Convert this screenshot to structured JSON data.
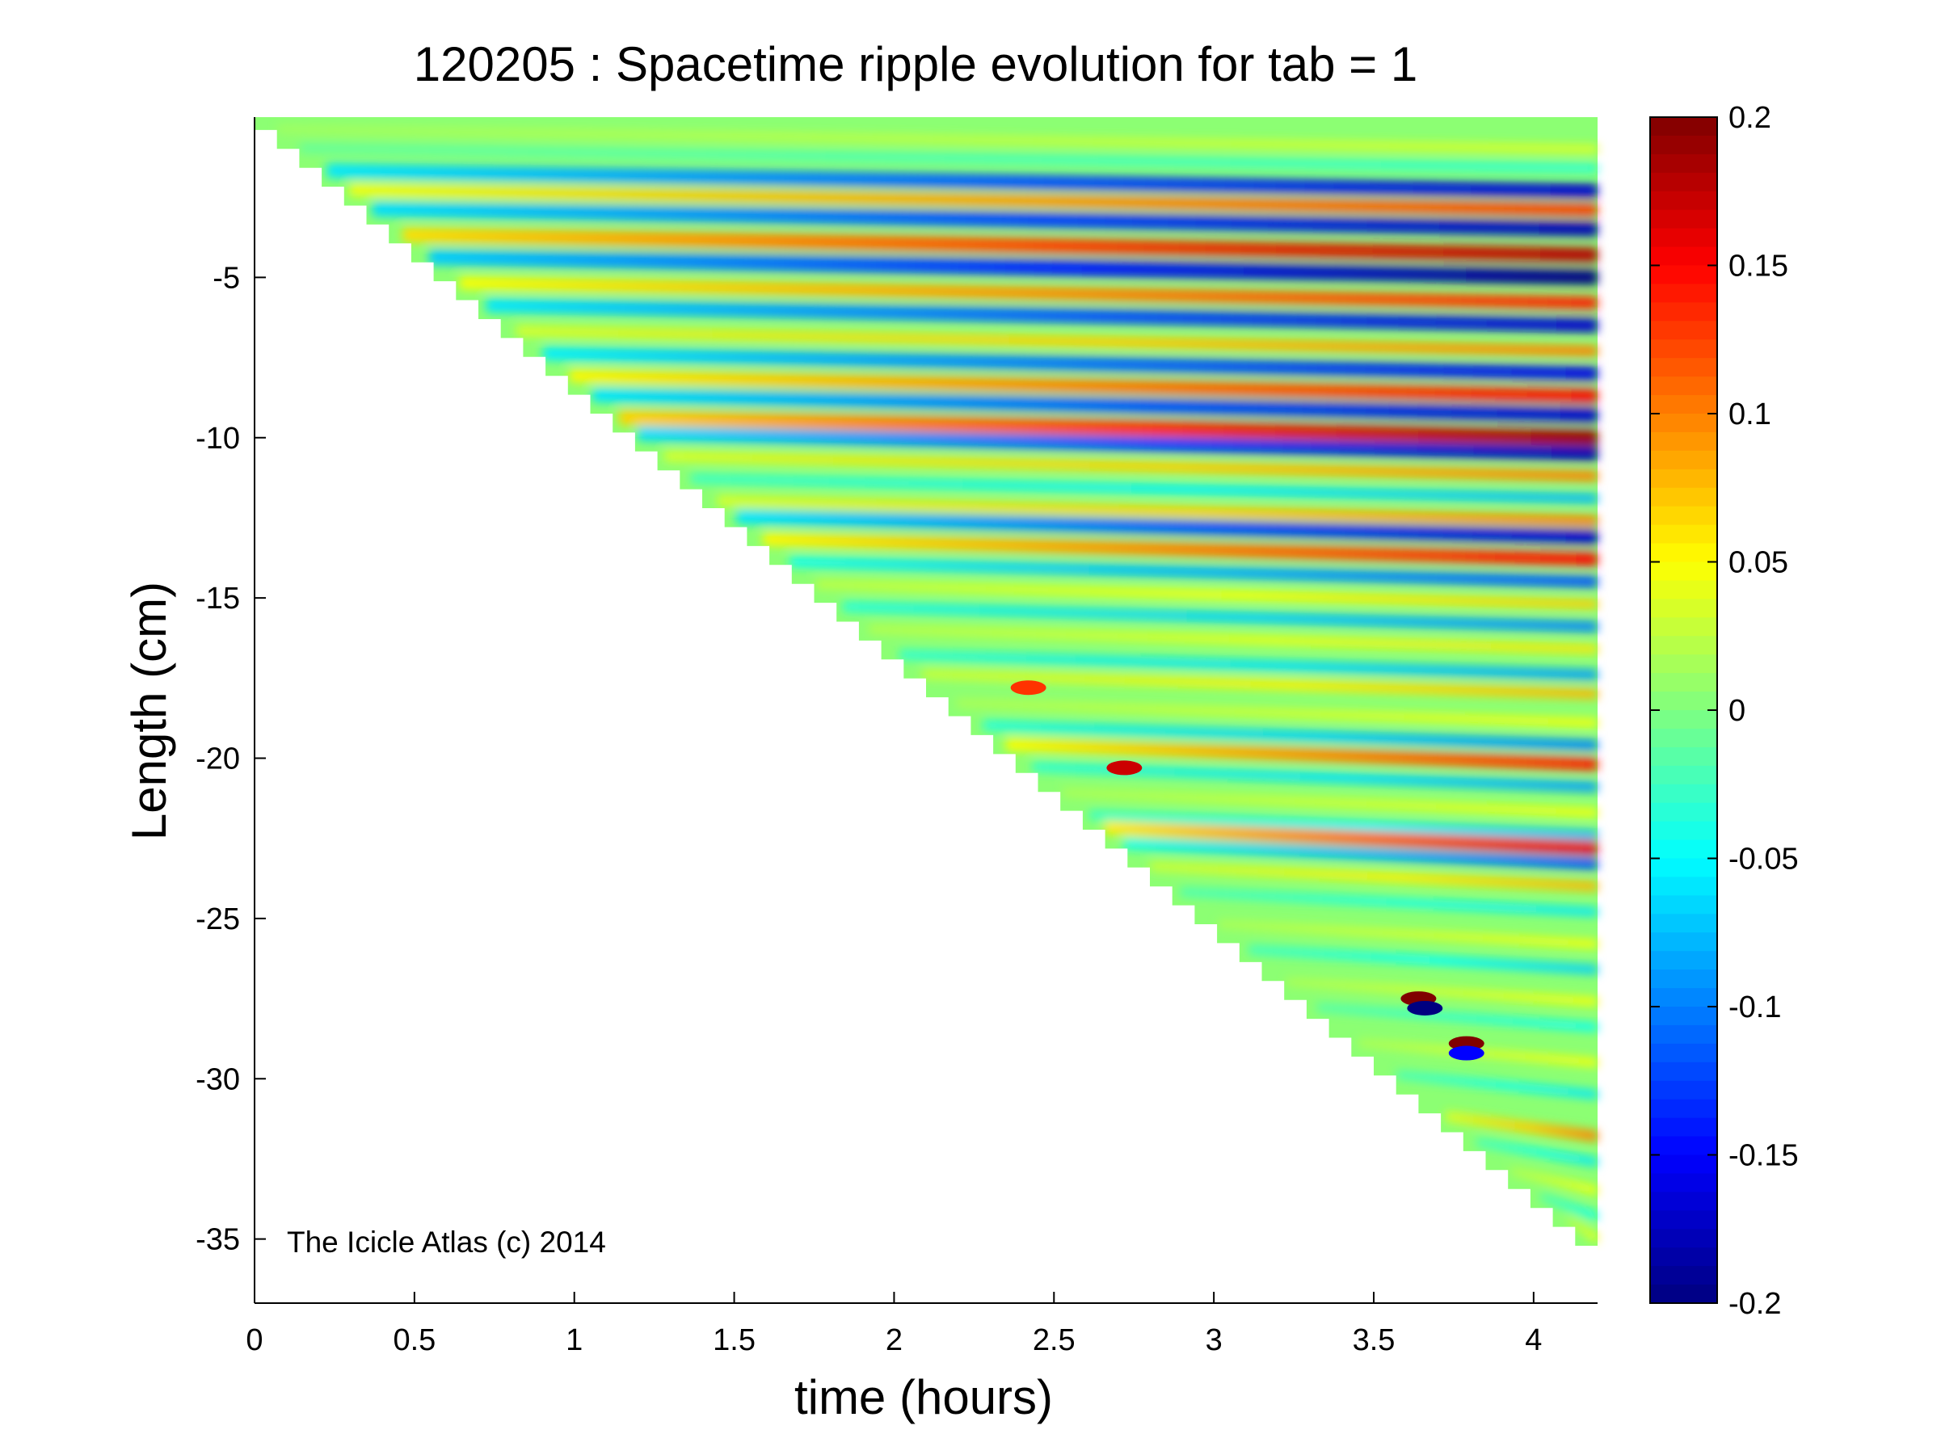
{
  "chart_data": {
    "type": "heatmap",
    "title": "120205 : Spacetime ripple evolution for tab = 1",
    "xlabel": "time (hours)",
    "ylabel": "Length (cm)",
    "xlim": [
      0,
      4.2
    ],
    "ylim": [
      -37,
      0
    ],
    "xticks": [
      0,
      0.5,
      1,
      1.5,
      2,
      2.5,
      3,
      3.5,
      4
    ],
    "xtick_labels": [
      "0",
      "0.5",
      "1",
      "1.5",
      "2",
      "2.5",
      "3",
      "3.5",
      "4"
    ],
    "yticks": [
      -5,
      -10,
      -15,
      -20,
      -25,
      -30,
      -35
    ],
    "ytick_labels": [
      "-5",
      "-10",
      "-15",
      "-20",
      "-25",
      "-30",
      "-35"
    ],
    "colormap": "jet",
    "clim": [
      -0.2,
      0.2
    ],
    "colorbar_ticks": [
      0.2,
      0.15,
      0.1,
      0.05,
      0,
      -0.05,
      -0.1,
      -0.15,
      -0.2
    ],
    "colorbar_tick_labels": [
      "0.2",
      "0.15",
      "0.1",
      "0.05",
      "0",
      "-0.05",
      "-0.1",
      "-0.15",
      "-0.2"
    ],
    "growth_front": {
      "t_hours": [
        0,
        4.2
      ],
      "length_cm": [
        -0.4,
        -35.8
      ]
    },
    "ripple_bands": [
      {
        "length_cm": -1.0,
        "amplitude": 0.04
      },
      {
        "length_cm": -1.6,
        "amplitude": -0.04
      },
      {
        "length_cm": -2.3,
        "amplitude": -0.17
      },
      {
        "length_cm": -2.9,
        "amplitude": 0.13
      },
      {
        "length_cm": -3.5,
        "amplitude": -0.18
      },
      {
        "length_cm": -4.3,
        "amplitude": 0.18
      },
      {
        "length_cm": -5.0,
        "amplitude": -0.2
      },
      {
        "length_cm": -5.8,
        "amplitude": 0.14
      },
      {
        "length_cm": -6.5,
        "amplitude": -0.17
      },
      {
        "length_cm": -7.3,
        "amplitude": 0.1
      },
      {
        "length_cm": -8.0,
        "amplitude": -0.16
      },
      {
        "length_cm": -8.7,
        "amplitude": 0.15
      },
      {
        "length_cm": -9.3,
        "amplitude": -0.17
      },
      {
        "length_cm": -10.0,
        "amplitude": 0.19
      },
      {
        "length_cm": -10.5,
        "amplitude": -0.18
      },
      {
        "length_cm": -11.2,
        "amplitude": 0.1
      },
      {
        "length_cm": -11.9,
        "amplitude": -0.08
      },
      {
        "length_cm": -12.6,
        "amplitude": 0.1
      },
      {
        "length_cm": -13.1,
        "amplitude": -0.17
      },
      {
        "length_cm": -13.8,
        "amplitude": 0.15
      },
      {
        "length_cm": -14.5,
        "amplitude": -0.12
      },
      {
        "length_cm": -15.2,
        "amplitude": 0.07
      },
      {
        "length_cm": -15.9,
        "amplitude": -0.1
      },
      {
        "length_cm": -16.6,
        "amplitude": 0.06
      },
      {
        "length_cm": -17.4,
        "amplitude": -0.09
      },
      {
        "length_cm": -18.0,
        "amplitude": 0.08
      },
      {
        "length_cm": -18.9,
        "amplitude": 0.05
      },
      {
        "length_cm": -19.6,
        "amplitude": -0.1
      },
      {
        "length_cm": -20.2,
        "amplitude": 0.14
      },
      {
        "length_cm": -20.9,
        "amplitude": -0.09
      },
      {
        "length_cm": -21.7,
        "amplitude": 0.05
      },
      {
        "length_cm": -22.4,
        "amplitude": -0.08
      },
      {
        "length_cm": -22.8,
        "amplitude": 0.16
      },
      {
        "length_cm": -23.3,
        "amplitude": -0.12
      },
      {
        "length_cm": -24.0,
        "amplitude": 0.08
      },
      {
        "length_cm": -24.8,
        "amplitude": -0.06
      },
      {
        "length_cm": -25.8,
        "amplitude": 0.05
      },
      {
        "length_cm": -26.6,
        "amplitude": -0.07
      },
      {
        "length_cm": -27.6,
        "amplitude": 0.05
      },
      {
        "length_cm": -28.4,
        "amplitude": -0.05
      },
      {
        "length_cm": -29.5,
        "amplitude": 0.05
      },
      {
        "length_cm": -30.5,
        "amplitude": -0.06
      },
      {
        "length_cm": -31.8,
        "amplitude": 0.1
      },
      {
        "length_cm": -32.6,
        "amplitude": -0.06
      },
      {
        "length_cm": -33.5,
        "amplitude": 0.05
      },
      {
        "length_cm": -34.3,
        "amplitude": -0.05
      },
      {
        "length_cm": -35.0,
        "amplitude": 0.05
      }
    ],
    "spots": [
      {
        "t_hours": 2.42,
        "length_cm": -17.8,
        "value": 0.13
      },
      {
        "t_hours": 2.72,
        "length_cm": -20.3,
        "value": 0.17
      },
      {
        "t_hours": 3.64,
        "length_cm": -27.5,
        "value": 0.2
      },
      {
        "t_hours": 3.66,
        "length_cm": -27.8,
        "value": -0.2
      },
      {
        "t_hours": 3.79,
        "length_cm": -28.9,
        "value": 0.2
      },
      {
        "t_hours": 3.79,
        "length_cm": -29.2,
        "value": -0.15
      }
    ]
  },
  "annotation": "The Icicle Atlas (c) 2014"
}
